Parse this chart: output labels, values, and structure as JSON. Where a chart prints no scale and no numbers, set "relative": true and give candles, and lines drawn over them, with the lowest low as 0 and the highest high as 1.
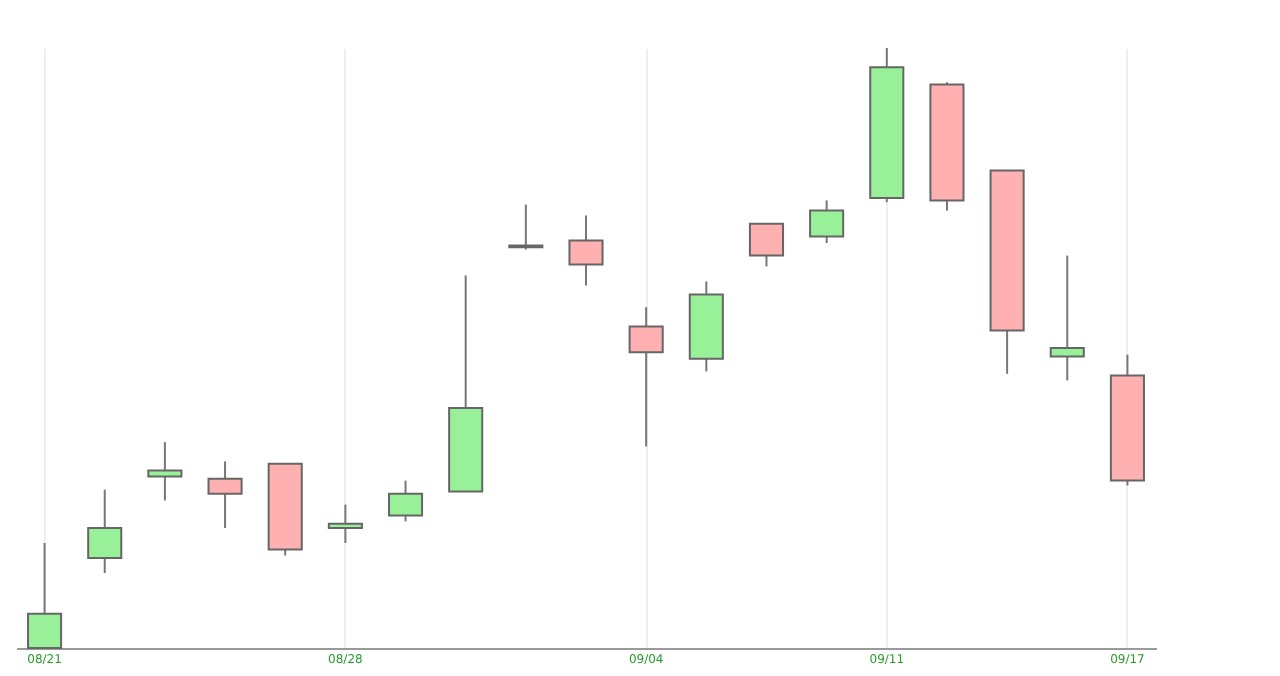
{
  "chart_data": {
    "type": "candlestick",
    "relative": true,
    "grid": "x",
    "categories": [
      "08/21",
      null,
      null,
      null,
      null,
      "08/28",
      null,
      null,
      null,
      null,
      "09/04",
      null,
      null,
      null,
      "09/11",
      null,
      null,
      null,
      "09/17"
    ],
    "ohlc": [
      [
        0,
        0.175,
        0,
        0.057
      ],
      [
        0.15,
        0.264,
        0.125,
        0.2
      ],
      [
        0.286,
        0.343,
        0.246,
        0.296
      ],
      [
        0.282,
        0.311,
        0.2,
        0.257
      ],
      [
        0.307,
        0.307,
        0.154,
        0.164
      ],
      [
        0.2,
        0.239,
        0.175,
        0.207
      ],
      [
        0.221,
        0.279,
        0.211,
        0.257
      ],
      [
        0.261,
        0.621,
        0.261,
        0.4
      ],
      [
        0.671,
        0.739,
        0.664,
        0.668
      ],
      [
        0.679,
        0.721,
        0.604,
        0.639
      ],
      [
        0.536,
        0.568,
        0.336,
        0.493
      ],
      [
        0.482,
        0.611,
        0.461,
        0.589
      ],
      [
        0.707,
        0.707,
        0.636,
        0.654
      ],
      [
        0.686,
        0.746,
        0.675,
        0.729
      ],
      [
        0.75,
        1,
        0.743,
        0.968
      ],
      [
        0.939,
        0.943,
        0.729,
        0.746
      ],
      [
        0.796,
        0.796,
        0.457,
        0.529
      ],
      [
        0.486,
        0.654,
        0.446,
        0.5
      ],
      [
        0.454,
        0.489,
        0.271,
        0.279
      ]
    ],
    "colors": [
      "#98f098",
      "#98f098",
      "#98f098",
      "#ffb0b0",
      "#ffb0b0",
      "#98f098",
      "#98f098",
      "#98f098",
      "#ffb0b0",
      "#ffb0b0",
      "#ffb0b0",
      "#98f098",
      "#ffb0b0",
      "#98f098",
      "#98f098",
      "#ffb0b0",
      "#ffb0b0",
      "#98f098",
      "#ffb0b0"
    ]
  }
}
